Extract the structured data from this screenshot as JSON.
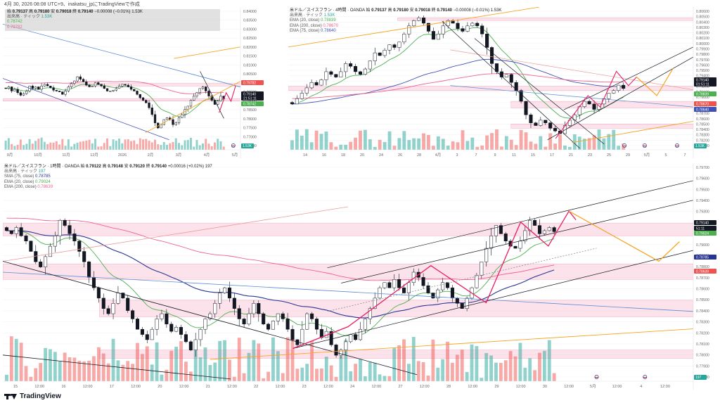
{
  "header": {
    "text": "4月 30, 2026 08:08 UTC+9、inakatsu_jpにTradingViewで作成"
  },
  "brand": {
    "name": "TradingView",
    "logo_icon": "tradingview-logo-icon"
  },
  "chart_data": [
    {
      "type": "candlestick",
      "id": "daily",
      "legend": {
        "title": "",
        "rows": [
          {
            "label": "出来高 · ティック",
            "value": "1.53K",
            "color": "#26a69a"
          },
          {
            "label": "",
            "value": "0.78742",
            "color": "#4caf50"
          },
          {
            "label": "",
            "value": "0.79782",
            "color": "#f06292"
          }
        ]
      },
      "ohlc": {
        "open": "0.79137",
        "high": "0.79180",
        "low": "0.79018",
        "close": "0.79140",
        "change": "−0.00008 (−0.01%)",
        "volume": "1.53K"
      },
      "price_axis": [
        "0.84000",
        "0.83500",
        "0.83000",
        "0.82500",
        "0.82000",
        "0.81500",
        "0.81000",
        "0.80500",
        "0.80000",
        "0.79500",
        "0.79000",
        "0.78500",
        "0.78000",
        "0.77500",
        "0.77000",
        "0.76500"
      ],
      "ylim": [
        0.761,
        0.846
      ],
      "time_axis": [
        "9月",
        "10月",
        "11月",
        "12月",
        "2026",
        "2月",
        "3月",
        "4月",
        "5月"
      ],
      "tags": [
        {
          "value": "0.79782",
          "color": "#ef5350"
        },
        {
          "value": "0.79140",
          "color": "#131722"
        },
        {
          "value": "21:51:11",
          "color": "#131722"
        },
        {
          "value": "0.78742",
          "color": "#4caf50"
        }
      ],
      "volume_label": "1.53K",
      "closes": [
        0.7975,
        0.7985,
        0.796,
        0.797,
        0.795,
        0.7935,
        0.7945,
        0.796,
        0.799,
        0.7975,
        0.7985,
        0.797,
        0.799,
        0.8,
        0.799,
        0.798,
        0.7965,
        0.796,
        0.7955,
        0.794,
        0.796,
        0.7985,
        0.8005,
        0.802,
        0.8045,
        0.803,
        0.8015,
        0.7995,
        0.7985,
        0.799,
        0.801,
        0.8,
        0.799,
        0.7975,
        0.796,
        0.796,
        0.7965,
        0.7975,
        0.799,
        0.8,
        0.7995,
        0.7985,
        0.797,
        0.796,
        0.794,
        0.792,
        0.7905,
        0.789,
        0.786,
        0.782,
        0.777,
        0.774,
        0.776,
        0.779,
        0.78,
        0.779,
        0.776,
        0.777,
        0.78,
        0.782,
        0.785,
        0.787,
        0.7905,
        0.793,
        0.795,
        0.7975,
        0.7985,
        0.796,
        0.793,
        0.7905,
        0.788,
        0.79,
        0.793,
        0.7914
      ]
    },
    {
      "type": "candlestick",
      "id": "4h",
      "legend": {
        "title": "米ドル／スイスフラン · 4時間 · OANDA",
        "rows": [
          {
            "label": "出来高 · ティック",
            "value": "1.53K",
            "color": "#26a69a"
          },
          {
            "label": "EMA (20, close)",
            "value": "0.78839",
            "color": "#4caf50"
          },
          {
            "label": "EMA (200, close)",
            "value": "0.78670",
            "color": "#f06292"
          },
          {
            "label": "EMA (75, close)",
            "value": "0.78640",
            "color": "#3f51b5"
          }
        ]
      },
      "ohlc": {
        "open": "0.79137",
        "high": "0.79180",
        "low": "0.79018",
        "close": "0.79140",
        "change": "−0.00008 (−0.01%)",
        "volume": "1.53K"
      },
      "price_axis": [
        "0.80600",
        "0.80500",
        "0.80400",
        "0.80300",
        "0.80200",
        "0.80100",
        "0.80000",
        "0.79900",
        "0.79800",
        "0.79700",
        "0.79600",
        "0.79500",
        "0.79400",
        "0.79300",
        "0.79200",
        "0.79100",
        "0.79000",
        "0.78900",
        "0.78800",
        "0.78700",
        "0.78600",
        "0.78500",
        "0.78400",
        "0.78300",
        "0.78200",
        "0.78100"
      ],
      "ylim": [
        0.78,
        0.8065
      ],
      "time_axis": [
        "14",
        "16",
        "18",
        "20",
        "24",
        "26",
        "28",
        "4月",
        "3",
        "7",
        "9",
        "11",
        "15",
        "17",
        "21",
        "23",
        "25",
        "29",
        "5月",
        "5",
        "7"
      ],
      "tags": [
        {
          "value": "0.79140",
          "color": "#131722"
        },
        {
          "value": "01:51:11",
          "color": "#131722"
        },
        {
          "value": "0.78839",
          "color": "#4caf50"
        },
        {
          "value": "0.78670",
          "color": "#ef5350"
        },
        {
          "value": "0.78640",
          "color": "#3f51b5"
        }
      ],
      "volume_label": "1.53K",
      "closes": [
        0.7885,
        0.7895,
        0.7905,
        0.7915,
        0.7925,
        0.792,
        0.793,
        0.7945,
        0.794,
        0.7935,
        0.7945,
        0.796,
        0.7955,
        0.7945,
        0.794,
        0.795,
        0.7965,
        0.798,
        0.7975,
        0.7985,
        0.7995,
        0.799,
        0.8,
        0.8015,
        0.803,
        0.804,
        0.8045,
        0.8035,
        0.802,
        0.8005,
        0.8015,
        0.803,
        0.804,
        0.8035,
        0.8025,
        0.802,
        0.803,
        0.8035,
        0.803,
        0.8015,
        0.799,
        0.796,
        0.7945,
        0.7935,
        0.794,
        0.7925,
        0.791,
        0.789,
        0.7865,
        0.785,
        0.7845,
        0.7855,
        0.785,
        0.784,
        0.7835,
        0.783,
        0.7845,
        0.7855,
        0.7865,
        0.788,
        0.789,
        0.7885,
        0.7875,
        0.7885,
        0.7895,
        0.7905,
        0.791,
        0.792,
        0.7914
      ]
    },
    {
      "type": "candlestick",
      "id": "1h",
      "legend": {
        "title": "米ドル／スイスフラン · 1時間 · OANDA",
        "rows": [
          {
            "label": "出来高 · ティック",
            "value": "197",
            "color": "#26a69a"
          },
          {
            "label": "SMA (75, close)",
            "value": "0.78785",
            "color": "#283593"
          },
          {
            "label": "EMA (20, close)",
            "value": "0.79024",
            "color": "#4caf50"
          },
          {
            "label": "EMA (200, close)",
            "value": "0.78639",
            "color": "#f06292"
          }
        ]
      },
      "ohlc": {
        "open": "0.79122",
        "high": "0.79148",
        "low": "0.79120",
        "close": "0.79140",
        "change": "+0.00016 (+0.02%)",
        "volume": "197"
      },
      "price_axis": [
        "0.79700",
        "0.79600",
        "0.79500",
        "0.79400",
        "0.79300",
        "0.79200",
        "0.79100",
        "0.79000",
        "0.78900",
        "0.78800",
        "0.78700",
        "0.78600",
        "0.78500",
        "0.78400",
        "0.78300",
        "0.78200",
        "0.78100",
        "0.78000",
        "0.77900",
        "0.77800"
      ],
      "ylim": [
        0.777,
        0.798
      ],
      "time_axis": [
        "15",
        "12:00",
        "16",
        "12:00",
        "17",
        "12:00",
        "20",
        "12:00",
        "21",
        "12:00",
        "22",
        "12:00",
        "23",
        "12:00",
        "24",
        "12:00",
        "27",
        "12:00",
        "28",
        "12:00",
        "29",
        "12:00",
        "30",
        "12:00",
        "5月",
        "12:00",
        "4",
        "12:00"
      ],
      "tags": [
        {
          "value": "0.79140",
          "color": "#131722"
        },
        {
          "value": "51:11",
          "color": "#131722"
        },
        {
          "value": "0.79024",
          "color": "#4caf50"
        },
        {
          "value": "0.78785",
          "color": "#283593"
        },
        {
          "value": "0.78639",
          "color": "#ef5350"
        }
      ],
      "volume_label": "197",
      "closes": [
        0.7915,
        0.7912,
        0.7918,
        0.791,
        0.7905,
        0.7895,
        0.7885,
        0.788,
        0.789,
        0.79,
        0.791,
        0.7925,
        0.792,
        0.7912,
        0.7905,
        0.7895,
        0.7885,
        0.787,
        0.786,
        0.785,
        0.784,
        0.7835,
        0.7845,
        0.7855,
        0.785,
        0.7838,
        0.783,
        0.782,
        0.7815,
        0.781,
        0.782,
        0.783,
        0.7835,
        0.7825,
        0.7818,
        0.7822,
        0.7815,
        0.7808,
        0.78,
        0.781,
        0.782,
        0.783,
        0.7835,
        0.7845,
        0.7855,
        0.786,
        0.785,
        0.784,
        0.783,
        0.7825,
        0.7835,
        0.7845,
        0.7835,
        0.7825,
        0.782,
        0.7828,
        0.7835,
        0.783,
        0.782,
        0.781,
        0.7805,
        0.782,
        0.7835,
        0.783,
        0.782,
        0.7812,
        0.7818,
        0.7805,
        0.7795,
        0.78,
        0.7808,
        0.7815,
        0.781,
        0.782,
        0.783,
        0.784,
        0.785,
        0.786,
        0.7865,
        0.786,
        0.7868,
        0.786,
        0.7855,
        0.7865,
        0.7875,
        0.787,
        0.7862,
        0.7855,
        0.785,
        0.7858,
        0.7865,
        0.786,
        0.785,
        0.7845,
        0.784,
        0.785,
        0.786,
        0.7872,
        0.7885,
        0.7898,
        0.791,
        0.792,
        0.7912,
        0.7905,
        0.79,
        0.7898,
        0.7905,
        0.7915,
        0.7925,
        0.792,
        0.7912,
        0.7915,
        0.7918,
        0.7914
      ]
    }
  ]
}
